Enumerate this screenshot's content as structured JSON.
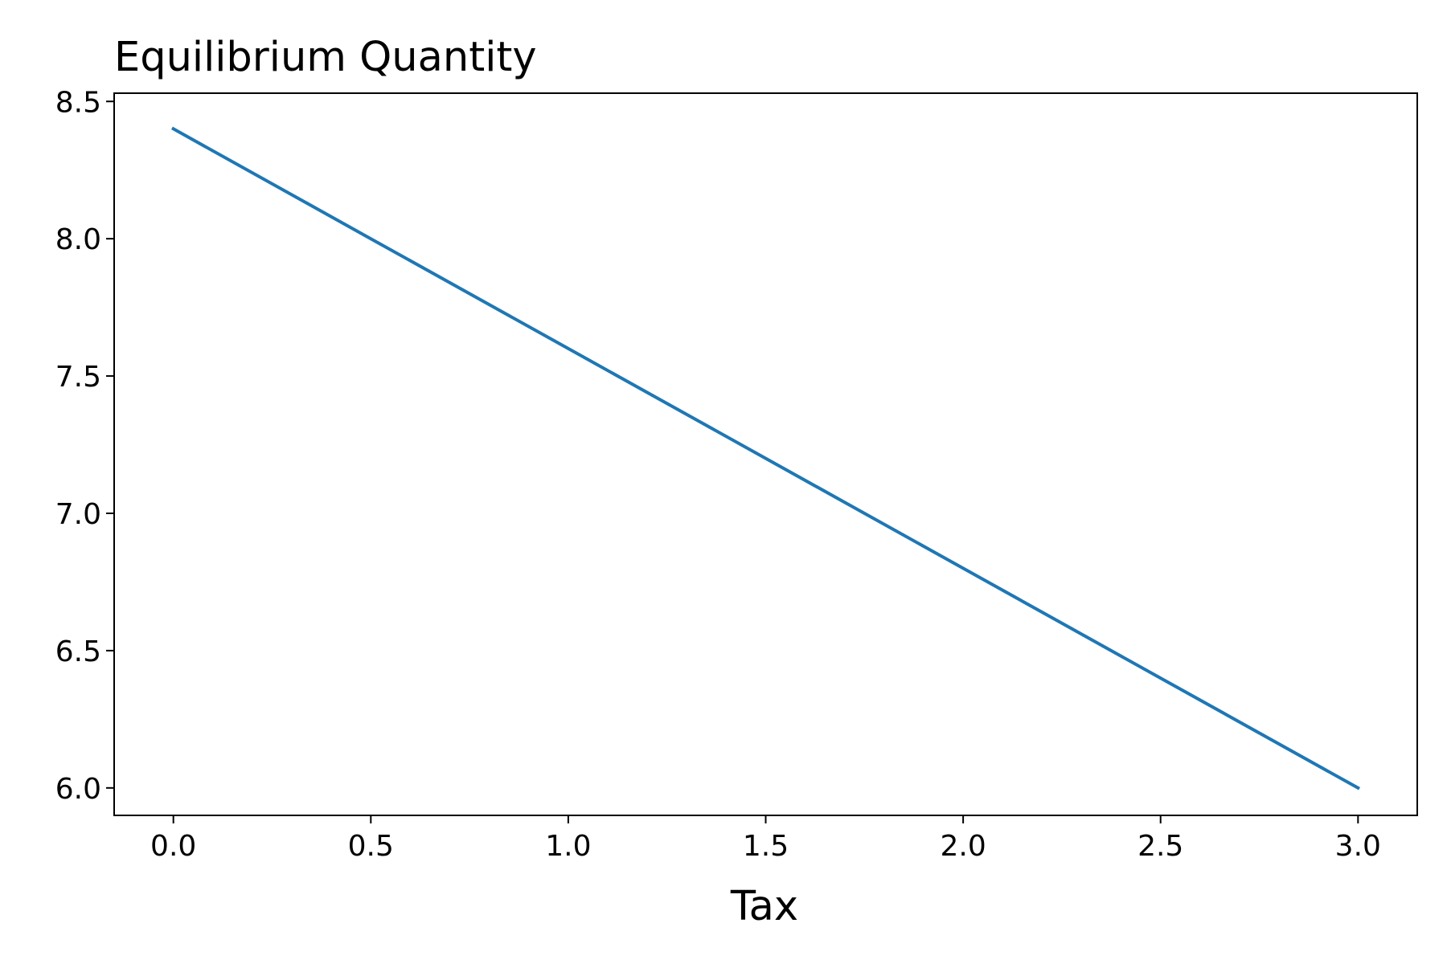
{
  "chart_data": {
    "type": "line",
    "title": "Equilibrium Quantity",
    "xlabel": "Tax",
    "ylabel": "",
    "xlim": [
      -0.15,
      3.15
    ],
    "ylim": [
      5.9,
      8.53
    ],
    "xticks": [
      0.0,
      0.5,
      1.0,
      1.5,
      2.0,
      2.5,
      3.0
    ],
    "xtick_labels": [
      "0.0",
      "0.5",
      "1.0",
      "1.5",
      "2.0",
      "2.5",
      "3.0"
    ],
    "yticks": [
      6.0,
      6.5,
      7.0,
      7.5,
      8.0,
      8.5
    ],
    "ytick_labels": [
      "6.0",
      "6.5",
      "7.0",
      "7.5",
      "8.0",
      "8.5"
    ],
    "grid": false,
    "legend": "none",
    "series": [
      {
        "color": "#1f77b4",
        "x": [
          0.0,
          0.5,
          1.0,
          1.5,
          2.0,
          2.5,
          3.0
        ],
        "y": [
          8.4,
          8.0,
          7.6,
          7.2,
          6.8,
          6.4,
          6.0
        ]
      }
    ]
  }
}
